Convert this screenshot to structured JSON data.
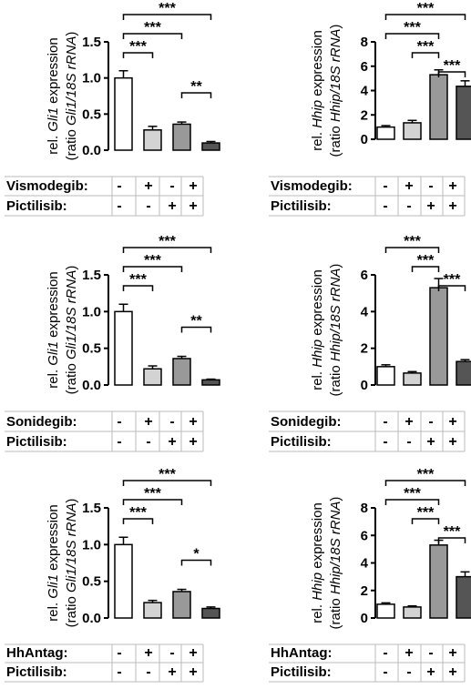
{
  "chart_data": [
    {
      "type": "bar",
      "ylabel_line1": [
        "rel. ",
        "Gli1",
        " expression"
      ],
      "ylabel_line2": [
        "(ratio ",
        "Gli1/18S rRNA",
        ")"
      ],
      "yticks": [
        "0.0",
        "0.5",
        "1.0",
        "1.5"
      ],
      "ylim": [
        0,
        1.5
      ],
      "values": [
        1.0,
        0.28,
        0.36,
        0.1
      ],
      "errors": [
        0.1,
        0.05,
        0.03,
        0.02
      ],
      "bar_colors": [
        "#ffffff",
        "#d3d3d3",
        "#999999",
        "#555555"
      ],
      "significance": [
        {
          "from": 0,
          "to": 1,
          "label": "***"
        },
        {
          "from": 0,
          "to": 2,
          "label": "***"
        },
        {
          "from": 0,
          "to": 3,
          "label": "***"
        },
        {
          "from": 2,
          "to": 3,
          "label": "**"
        }
      ],
      "conditions": [
        {
          "name": "Vismodegib:",
          "signs": [
            "-",
            "+",
            "-",
            "+"
          ]
        },
        {
          "name": "Pictilisib:",
          "signs": [
            "-",
            "-",
            "+",
            "+"
          ]
        }
      ]
    },
    {
      "type": "bar",
      "ylabel_line1": [
        "rel. ",
        "Hhip",
        " expression"
      ],
      "ylabel_line2": [
        "(ratio ",
        "Hhip/18S rRNA",
        ")"
      ],
      "yticks": [
        "0",
        "2",
        "4",
        "6",
        "8"
      ],
      "ylim": [
        0,
        8
      ],
      "values": [
        1.0,
        1.35,
        5.3,
        4.35
      ],
      "errors": [
        0.12,
        0.2,
        0.4,
        0.45
      ],
      "bar_colors": [
        "#ffffff",
        "#d3d3d3",
        "#999999",
        "#555555"
      ],
      "significance": [
        {
          "from": 0,
          "to": 2,
          "label": "***"
        },
        {
          "from": 0,
          "to": 3,
          "label": "***"
        },
        {
          "from": 1,
          "to": 2,
          "label": "***"
        },
        {
          "from": 2,
          "to": 3,
          "label": "***"
        }
      ],
      "conditions": [
        {
          "name": "Vismodegib:",
          "signs": [
            "-",
            "+",
            "-",
            "+"
          ]
        },
        {
          "name": "Pictilisib:",
          "signs": [
            "-",
            "-",
            "+",
            "+"
          ]
        }
      ]
    },
    {
      "type": "bar",
      "ylabel_line1": [
        "rel. ",
        "Gli1",
        " expression"
      ],
      "ylabel_line2": [
        "(ratio ",
        "Gli1/18S rRNA",
        ")"
      ],
      "yticks": [
        "0.0",
        "0.5",
        "1.0",
        "1.5"
      ],
      "ylim": [
        0,
        1.5
      ],
      "values": [
        1.0,
        0.22,
        0.36,
        0.07
      ],
      "errors": [
        0.1,
        0.04,
        0.03,
        0.01
      ],
      "bar_colors": [
        "#ffffff",
        "#d3d3d3",
        "#999999",
        "#555555"
      ],
      "significance": [
        {
          "from": 0,
          "to": 1,
          "label": "***"
        },
        {
          "from": 0,
          "to": 2,
          "label": "***"
        },
        {
          "from": 0,
          "to": 3,
          "label": "***"
        },
        {
          "from": 2,
          "to": 3,
          "label": "**"
        }
      ],
      "conditions": [
        {
          "name": "Sonidegib:",
          "signs": [
            "-",
            "+",
            "-",
            "+"
          ]
        },
        {
          "name": "Pictilisib:",
          "signs": [
            "-",
            "-",
            "+",
            "+"
          ]
        }
      ]
    },
    {
      "type": "bar",
      "ylabel_line1": [
        "rel. ",
        "Hhip",
        " expression"
      ],
      "ylabel_line2": [
        "(ratio ",
        "Hhip/18S rRNA",
        ")"
      ],
      "yticks": [
        "0",
        "2",
        "4",
        "6"
      ],
      "ylim": [
        0,
        6
      ],
      "values": [
        1.0,
        0.65,
        5.3,
        1.28
      ],
      "errors": [
        0.1,
        0.08,
        0.5,
        0.1
      ],
      "bar_colors": [
        "#ffffff",
        "#d3d3d3",
        "#999999",
        "#555555"
      ],
      "significance": [
        {
          "from": 0,
          "to": 2,
          "label": "***"
        },
        {
          "from": 1,
          "to": 2,
          "label": "***"
        },
        {
          "from": 2,
          "to": 3,
          "label": "***"
        }
      ],
      "conditions": [
        {
          "name": "Sonidegib:",
          "signs": [
            "-",
            "+",
            "-",
            "+"
          ]
        },
        {
          "name": "Pictilisib:",
          "signs": [
            "-",
            "-",
            "+",
            "+"
          ]
        }
      ]
    },
    {
      "type": "bar",
      "ylabel_line1": [
        "rel. ",
        "Gli1",
        " expression"
      ],
      "ylabel_line2": [
        "(ratio ",
        "Gli1/18S rRNA",
        ")"
      ],
      "yticks": [
        "0.0",
        "0.5",
        "1.0",
        "1.5"
      ],
      "ylim": [
        0,
        1.5
      ],
      "values": [
        1.0,
        0.21,
        0.36,
        0.13
      ],
      "errors": [
        0.1,
        0.03,
        0.03,
        0.02
      ],
      "bar_colors": [
        "#ffffff",
        "#d3d3d3",
        "#999999",
        "#555555"
      ],
      "significance": [
        {
          "from": 0,
          "to": 1,
          "label": "***"
        },
        {
          "from": 0,
          "to": 2,
          "label": "***"
        },
        {
          "from": 0,
          "to": 3,
          "label": "***"
        },
        {
          "from": 2,
          "to": 3,
          "label": "*"
        }
      ],
      "conditions": [
        {
          "name": "HhAntag:",
          "signs": [
            "-",
            "+",
            "-",
            "+"
          ]
        },
        {
          "name": "Pictilisib:",
          "signs": [
            "-",
            "-",
            "+",
            "+"
          ]
        }
      ]
    },
    {
      "type": "bar",
      "ylabel_line1": [
        "rel. ",
        "Hhip",
        " expression"
      ],
      "ylabel_line2": [
        "(ratio ",
        "Hhip/18S rRNA",
        ")"
      ],
      "yticks": [
        "0",
        "2",
        "4",
        "6",
        "8"
      ],
      "ylim": [
        0,
        8
      ],
      "values": [
        1.0,
        0.8,
        5.3,
        3.0
      ],
      "errors": [
        0.1,
        0.08,
        0.35,
        0.35
      ],
      "bar_colors": [
        "#ffffff",
        "#d3d3d3",
        "#999999",
        "#555555"
      ],
      "significance": [
        {
          "from": 0,
          "to": 2,
          "label": "***"
        },
        {
          "from": 0,
          "to": 3,
          "label": "***"
        },
        {
          "from": 1,
          "to": 2,
          "label": "***"
        },
        {
          "from": 2,
          "to": 3,
          "label": "***"
        }
      ],
      "conditions": [
        {
          "name": "HhAntag:",
          "signs": [
            "-",
            "+",
            "-",
            "+"
          ]
        },
        {
          "name": "Pictilisib:",
          "signs": [
            "-",
            "-",
            "+",
            "+"
          ]
        }
      ]
    }
  ]
}
